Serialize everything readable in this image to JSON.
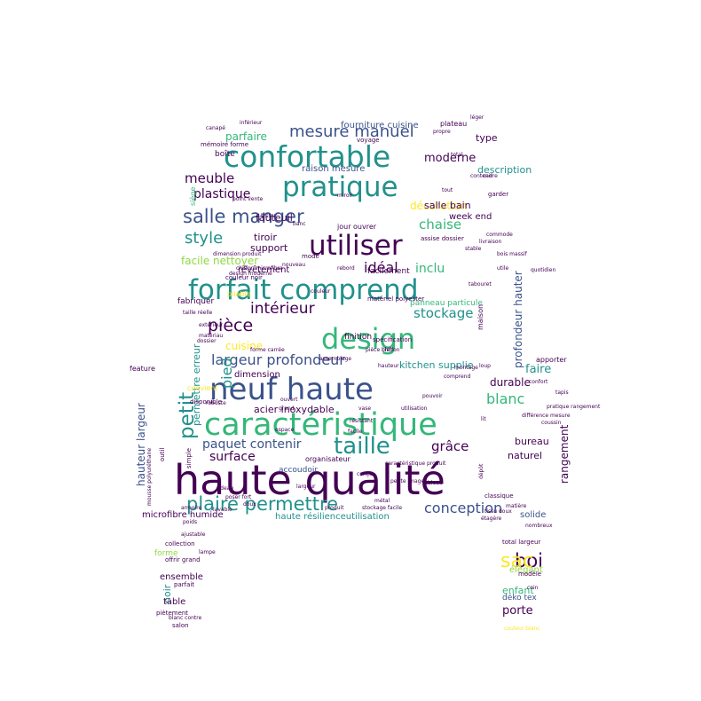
{
  "palette": {
    "dark_purple": "#440154",
    "indigo": "#3b528b",
    "teal": "#21918c",
    "green": "#35b779",
    "lime": "#90d743",
    "yellow": "#fde725"
  },
  "words": [
    {
      "text": "haute qualité",
      "weight": 1.0,
      "color": "#440154"
    },
    {
      "text": "caractéristique",
      "weight": 0.78,
      "color": "#35b779"
    },
    {
      "text": "neuf haute",
      "weight": 0.72,
      "color": "#3b528b"
    },
    {
      "text": "confortable",
      "weight": 0.66,
      "color": "#21918c"
    },
    {
      "text": "design",
      "weight": 0.62,
      "color": "#35b779"
    },
    {
      "text": "forfait comprend",
      "weight": 0.6,
      "color": "#21918c"
    },
    {
      "text": "pratique",
      "weight": 0.56,
      "color": "#21918c"
    },
    {
      "text": "utiliser",
      "weight": 0.56,
      "color": "#440154"
    },
    {
      "text": "taille",
      "weight": 0.48,
      "color": "#21918c"
    },
    {
      "text": "plaire permettre",
      "weight": 0.4,
      "color": "#21918c"
    },
    {
      "text": "salle manger",
      "weight": 0.4,
      "color": "#3b528b"
    },
    {
      "text": "petit",
      "weight": 0.38,
      "color": "#21918c"
    },
    {
      "text": "mesure manuel",
      "weight": 0.34,
      "color": "#3b528b"
    },
    {
      "text": "pièce",
      "weight": 0.32,
      "color": "#440154"
    },
    {
      "text": "intérieur",
      "weight": 0.3,
      "color": "#440154"
    },
    {
      "text": "style",
      "weight": 0.28,
      "color": "#21918c"
    },
    {
      "text": "largeur profondeur",
      "weight": 0.28,
      "color": "#3b528b"
    },
    {
      "text": "pied",
      "weight": 0.28,
      "color": "#21918c"
    },
    {
      "text": "conception",
      "weight": 0.28,
      "color": "#3b528b"
    },
    {
      "text": "blanc",
      "weight": 0.28,
      "color": "#35b779"
    },
    {
      "text": "boi",
      "weight": 0.28,
      "color": "#440154"
    },
    {
      "text": "sac",
      "weight": 0.26,
      "color": "#fde725"
    },
    {
      "text": "stockage",
      "weight": 0.24,
      "color": "#21918c"
    },
    {
      "text": "paquet contenir",
      "weight": 0.22,
      "color": "#3b528b"
    },
    {
      "text": "meuble",
      "weight": 0.24,
      "color": "#440154"
    },
    {
      "text": "profondeur hauter",
      "weight": 0.22,
      "color": "#3b528b"
    },
    {
      "text": "idéal",
      "weight": 0.24,
      "color": "#440154"
    },
    {
      "text": "plastique",
      "weight": 0.2,
      "color": "#440154"
    },
    {
      "text": "chaise",
      "weight": 0.2,
      "color": "#35b779"
    },
    {
      "text": "inclu",
      "weight": 0.2,
      "color": "#35b779"
    },
    {
      "text": "surface",
      "weight": 0.2,
      "color": "#440154"
    },
    {
      "text": "grâce",
      "weight": 0.18,
      "color": "#440154"
    },
    {
      "text": "parfaire",
      "weight": 0.18,
      "color": "#35b779"
    },
    {
      "text": "moderne",
      "weight": 0.18,
      "color": "#440154"
    },
    {
      "text": "décoration",
      "weight": 0.16,
      "color": "#fde725"
    },
    {
      "text": "facile nettoyer",
      "weight": 0.16,
      "color": "#90d743"
    },
    {
      "text": "durable",
      "weight": 0.16,
      "color": "#440154"
    },
    {
      "text": "cuisine",
      "weight": 0.16,
      "color": "#fde725"
    },
    {
      "text": "rangement",
      "weight": 0.14,
      "color": "#440154"
    },
    {
      "text": "permettre erreur",
      "weight": 0.14,
      "color": "#21918c"
    },
    {
      "text": "hauteur largeur",
      "weight": 0.14,
      "color": "#3b528b"
    },
    {
      "text": "acier inoxydable",
      "weight": 0.14,
      "color": "#440154"
    },
    {
      "text": "description",
      "weight": 0.14,
      "color": "#21918c"
    },
    {
      "text": "salle bain",
      "weight": 0.14,
      "color": "#440154"
    },
    {
      "text": "kitchen supplie",
      "weight": 0.14,
      "color": "#21918c"
    },
    {
      "text": "tiroir",
      "weight": 0.14,
      "color": "#440154"
    },
    {
      "text": "support",
      "weight": 0.14,
      "color": "#440154"
    },
    {
      "text": "faire",
      "weight": 0.14,
      "color": "#21918c"
    },
    {
      "text": "porte",
      "weight": 0.14,
      "color": "#440154"
    },
    {
      "text": "dimension",
      "weight": 0.12,
      "color": "#440154"
    },
    {
      "text": "accoudoir",
      "weight": 0.12,
      "color": "#3b528b"
    },
    {
      "text": "naturel",
      "weight": 0.12,
      "color": "#440154"
    },
    {
      "text": "bureau",
      "weight": 0.12,
      "color": "#440154"
    },
    {
      "text": "microfibre humide",
      "weight": 0.12,
      "color": "#440154"
    },
    {
      "text": "haute résilienceutilisation",
      "weight": 0.12,
      "color": "#21918c"
    },
    {
      "text": "ensemble",
      "weight": 0.12,
      "color": "#440154"
    },
    {
      "text": "fauteuil",
      "weight": 0.12,
      "color": "#440154"
    },
    {
      "text": "week end",
      "weight": 0.12,
      "color": "#440154"
    },
    {
      "text": "type",
      "weight": 0.12,
      "color": "#440154"
    },
    {
      "text": "enfant",
      "weight": 0.12,
      "color": "#35b779"
    },
    {
      "text": "noir",
      "weight": 0.12,
      "color": "#21918c"
    },
    {
      "text": "table",
      "weight": 0.12,
      "color": "#440154"
    },
    {
      "text": "élégant",
      "weight": 0.12,
      "color": "#90d743"
    },
    {
      "text": "fourniture cuisine",
      "weight": 0.1,
      "color": "#3b528b"
    },
    {
      "text": "raison mesure",
      "weight": 0.1,
      "color": "#3b528b"
    },
    {
      "text": "revêtement",
      "weight": 0.1,
      "color": "#440154"
    },
    {
      "text": "facilement",
      "weight": 0.1,
      "color": "#440154"
    },
    {
      "text": "fabriquer",
      "weight": 0.1,
      "color": "#440154"
    },
    {
      "text": "panneau particule",
      "weight": 0.1,
      "color": "#35b779"
    },
    {
      "text": "finition",
      "weight": 0.1,
      "color": "#440154"
    },
    {
      "text": "solide",
      "weight": 0.1,
      "color": "#3b528b"
    },
    {
      "text": "boîte",
      "weight": 0.1,
      "color": "#440154"
    },
    {
      "text": "forme",
      "weight": 0.1,
      "color": "#90d743"
    },
    {
      "text": "organisateur",
      "weight": 0.09,
      "color": "#440154"
    },
    {
      "text": "jour ouvrer",
      "weight": 0.09,
      "color": "#440154"
    },
    {
      "text": "assise dossier",
      "weight": 0.08,
      "color": "#440154"
    },
    {
      "text": "siège",
      "weight": 0.09,
      "color": "#35b779"
    },
    {
      "text": "plateau",
      "weight": 0.08,
      "color": "#440154"
    },
    {
      "text": "voyage",
      "weight": 0.08,
      "color": "#440154"
    },
    {
      "text": "mode",
      "weight": 0.08,
      "color": "#440154"
    },
    {
      "text": "pliable",
      "weight": 0.08,
      "color": "#fde725"
    },
    {
      "text": "couleur noir",
      "weight": 0.07,
      "color": "#440154"
    },
    {
      "text": "matériel polyester",
      "weight": 0.08,
      "color": "#440154"
    },
    {
      "text": "spécification",
      "weight": 0.08,
      "color": "#440154"
    },
    {
      "text": "maison",
      "weight": 0.08,
      "color": "#440154"
    },
    {
      "text": "feature",
      "weight": 0.08,
      "color": "#440154"
    },
    {
      "text": "apporter",
      "weight": 0.08,
      "color": "#440154"
    },
    {
      "text": "convient",
      "weight": 0.08,
      "color": "#fde725"
    },
    {
      "text": "disponible",
      "weight": 0.07,
      "color": "#440154"
    },
    {
      "text": "collection",
      "weight": 0.07,
      "color": "#440154"
    },
    {
      "text": "offrir grand",
      "weight": 0.07,
      "color": "#440154"
    },
    {
      "text": "parfait",
      "weight": 0.07,
      "color": "#440154"
    },
    {
      "text": "salon",
      "weight": 0.07,
      "color": "#440154"
    },
    {
      "text": "piètement",
      "weight": 0.07,
      "color": "#440154"
    },
    {
      "text": "total largeur",
      "weight": 0.07,
      "color": "#440154"
    },
    {
      "text": "déko tex",
      "weight": 0.07,
      "color": "#3b528b"
    },
    {
      "text": "modèle",
      "weight": 0.07,
      "color": "#440154"
    },
    {
      "text": "classique",
      "weight": 0.07,
      "color": "#440154"
    },
    {
      "text": "mémoire forme",
      "weight": 0.07,
      "color": "#440154"
    },
    {
      "text": "chiffon microfibre",
      "weight": 0.07,
      "color": "#440154"
    },
    {
      "text": "simple",
      "weight": 0.07,
      "color": "#440154"
    },
    {
      "text": "outil",
      "weight": 0.07,
      "color": "#440154"
    },
    {
      "text": "garder",
      "weight": 0.07,
      "color": "#440154"
    },
    {
      "text": "point vente",
      "weight": 0.06,
      "color": "#440154"
    },
    {
      "text": "différence mesure",
      "weight": 0.06,
      "color": "#440154"
    },
    {
      "text": "confort",
      "weight": 0.06,
      "color": "#440154"
    },
    {
      "text": "mousse polyuréthane",
      "weight": 0.06,
      "color": "#440154"
    },
    {
      "text": "tissu",
      "weight": 0.07,
      "color": "#440154"
    },
    {
      "text": "métal",
      "weight": 0.06,
      "color": "#440154"
    },
    {
      "text": "propre",
      "weight": 0.06,
      "color": "#440154"
    },
    {
      "text": "cadre",
      "weight": 0.06,
      "color": "#440154"
    },
    {
      "text": "dossier",
      "weight": 0.06,
      "color": "#440154"
    },
    {
      "text": "rebord",
      "weight": 0.06,
      "color": "#440154"
    },
    {
      "text": "pièce chiffon",
      "weight": 0.06,
      "color": "#440154"
    },
    {
      "text": "grand",
      "weight": 0.06,
      "color": "#440154"
    },
    {
      "text": "doux",
      "weight": 0.06,
      "color": "#440154"
    },
    {
      "text": "loup",
      "weight": 0.06,
      "color": "#440154"
    },
    {
      "text": "matériau",
      "weight": 0.06,
      "color": "#440154"
    },
    {
      "text": "conçu",
      "weight": 0.06,
      "color": "#440154"
    },
    {
      "text": "ouvert",
      "weight": 0.06,
      "color": "#440154"
    },
    {
      "text": "total",
      "weight": 0.06,
      "color": "#440154"
    },
    {
      "text": "blanc contre",
      "weight": 0.06,
      "color": "#440154"
    },
    {
      "text": "coin",
      "weight": 0.06,
      "color": "#440154"
    },
    {
      "text": "pouvoir",
      "weight": 0.06,
      "color": "#440154"
    },
    {
      "text": "design moderne",
      "weight": 0.06,
      "color": "#440154"
    },
    {
      "text": "couleur blanc",
      "weight": 0.06,
      "color": "#fde725"
    },
    {
      "text": "dépôt",
      "weight": 0.06,
      "color": "#440154"
    },
    {
      "text": "poser fort",
      "weight": 0.06,
      "color": "#440154"
    },
    {
      "text": "produit",
      "weight": 0.06,
      "color": "#440154"
    },
    {
      "text": "inférieur",
      "weight": 0.06,
      "color": "#440154"
    },
    {
      "text": "léger",
      "weight": 0.06,
      "color": "#440154"
    },
    {
      "text": "ajustable",
      "weight": 0.06,
      "color": "#440154"
    },
    {
      "text": "petite image",
      "weight": 0.06,
      "color": "#440154"
    },
    {
      "text": "montage",
      "weight": 0.06,
      "color": "#440154"
    },
    {
      "text": "assemblage",
      "weight": 0.06,
      "color": "#440154"
    },
    {
      "text": "robuste",
      "weight": 0.06,
      "color": "#440154"
    },
    {
      "text": "nouveau",
      "weight": 0.06,
      "color": "#440154"
    },
    {
      "text": "contenir",
      "weight": 0.06,
      "color": "#440154"
    },
    {
      "text": "poids",
      "weight": 0.06,
      "color": "#440154"
    },
    {
      "text": "facile",
      "weight": 0.06,
      "color": "#440154"
    },
    {
      "text": "utilisation",
      "weight": 0.06,
      "color": "#440154"
    },
    {
      "text": "dimension produit",
      "weight": 0.06,
      "color": "#440154"
    },
    {
      "text": "livraison",
      "weight": 0.06,
      "color": "#440154"
    },
    {
      "text": "stable",
      "weight": 0.06,
      "color": "#440154"
    },
    {
      "text": "largeur",
      "weight": 0.06,
      "color": "#440154"
    },
    {
      "text": "lavable",
      "weight": 0.06,
      "color": "#440154"
    },
    {
      "text": "résistant",
      "weight": 0.06,
      "color": "#440154"
    },
    {
      "text": "pratique rangement",
      "weight": 0.06,
      "color": "#440154"
    },
    {
      "text": "comprend",
      "weight": 0.06,
      "color": "#440154"
    },
    {
      "text": "couleur",
      "weight": 0.06,
      "color": "#440154"
    },
    {
      "text": "utile",
      "weight": 0.06,
      "color": "#440154"
    },
    {
      "text": "taille réelle",
      "weight": 0.06,
      "color": "#440154"
    },
    {
      "text": "caractéristique produit",
      "weight": 0.06,
      "color": "#440154"
    },
    {
      "text": "espace",
      "weight": 0.06,
      "color": "#440154"
    },
    {
      "text": "matière",
      "weight": 0.06,
      "color": "#440154"
    },
    {
      "text": "quotidien",
      "weight": 0.06,
      "color": "#440154"
    },
    {
      "text": "forme carrée",
      "weight": 0.06,
      "color": "#440154"
    },
    {
      "text": "extérieur",
      "weight": 0.06,
      "color": "#440154"
    },
    {
      "text": "bois massif",
      "weight": 0.06,
      "color": "#440154"
    },
    {
      "text": "tissu doux",
      "weight": 0.06,
      "color": "#440154"
    },
    {
      "text": "bien",
      "weight": 0.06,
      "color": "#440154"
    },
    {
      "text": "tout",
      "weight": 0.06,
      "color": "#440154"
    },
    {
      "text": "nombreux",
      "weight": 0.06,
      "color": "#440154"
    },
    {
      "text": "hauteur",
      "weight": 0.06,
      "color": "#440154"
    },
    {
      "text": "stockage facile",
      "weight": 0.06,
      "color": "#440154"
    },
    {
      "text": "tableau",
      "weight": 0.06,
      "color": "#440154"
    },
    {
      "text": "coussin",
      "weight": 0.06,
      "color": "#440154"
    },
    {
      "text": "lit",
      "weight": 0.06,
      "color": "#440154"
    },
    {
      "text": "commode",
      "weight": 0.06,
      "color": "#440154"
    },
    {
      "text": "étagère",
      "weight": 0.06,
      "color": "#440154"
    },
    {
      "text": "armoire",
      "weight": 0.06,
      "color": "#440154"
    },
    {
      "text": "canapé",
      "weight": 0.06,
      "color": "#440154"
    },
    {
      "text": "tabouret",
      "weight": 0.06,
      "color": "#440154"
    },
    {
      "text": "banc",
      "weight": 0.06,
      "color": "#440154"
    },
    {
      "text": "miroir",
      "weight": 0.06,
      "color": "#440154"
    },
    {
      "text": "lampe",
      "weight": 0.06,
      "color": "#440154"
    },
    {
      "text": "tapis",
      "weight": 0.06,
      "color": "#440154"
    },
    {
      "text": "rideau",
      "weight": 0.06,
      "color": "#440154"
    },
    {
      "text": "vase",
      "weight": 0.06,
      "color": "#440154"
    }
  ]
}
